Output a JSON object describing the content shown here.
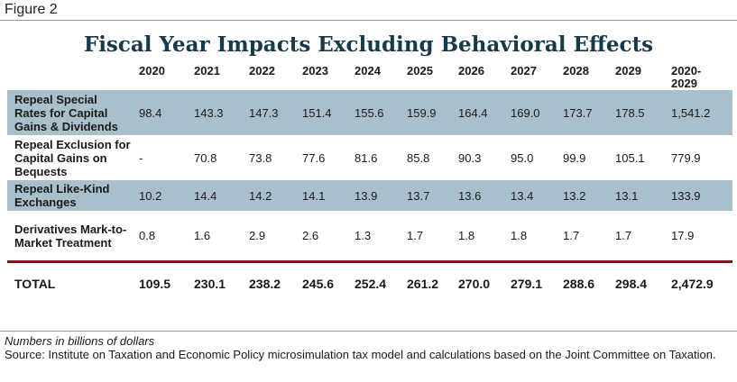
{
  "figure_label": "Figure 2",
  "title": "Fiscal Year Impacts Excluding Behavioral Effects",
  "columns": [
    "2020",
    "2021",
    "2022",
    "2023",
    "2024",
    "2025",
    "2026",
    "2027",
    "2028",
    "2029",
    "2020-\n2029"
  ],
  "rows": [
    {
      "label": "Repeal Special Rates for Capital Gains & Dividends",
      "values": [
        "98.4",
        "143.3",
        "147.3",
        "151.4",
        "155.6",
        "159.9",
        "164.4",
        "169.0",
        "173.7",
        "178.5",
        "1,541.2"
      ]
    },
    {
      "label": "Repeal Exclusion for Capital Gains on Bequests",
      "values": [
        "-",
        "70.8",
        "73.8",
        "77.6",
        "81.6",
        "85.8",
        "90.3",
        "95.0",
        "99.9",
        "105.1",
        "779.9"
      ]
    },
    {
      "label": "Repeal Like-Kind Exchanges",
      "values": [
        "10.2",
        "14.4",
        "14.2",
        "14.1",
        "13.9",
        "13.7",
        "13.6",
        "13.4",
        "13.2",
        "13.1",
        "133.9"
      ]
    },
    {
      "label": "Derivatives Mark-to-Market Treatment",
      "values": [
        "0.8",
        "1.6",
        "2.9",
        "2.6",
        "1.3",
        "1.7",
        "1.8",
        "1.8",
        "1.7",
        "1.7",
        "17.9"
      ]
    }
  ],
  "total": {
    "label": "TOTAL",
    "values": [
      "109.5",
      "230.1",
      "238.2",
      "245.6",
      "252.4",
      "261.2",
      "270.0",
      "279.1",
      "288.6",
      "298.4",
      "2,472.9"
    ]
  },
  "note": "Numbers in billions of dollars",
  "source": "Source: Institute on Taxation and Economic Policy microsimulation tax model and calculations based on the Joint Committee on Taxation.",
  "colors": {
    "title": "#163a4a",
    "shade": "#a9bfcc",
    "separator": "#8b0f1a"
  }
}
